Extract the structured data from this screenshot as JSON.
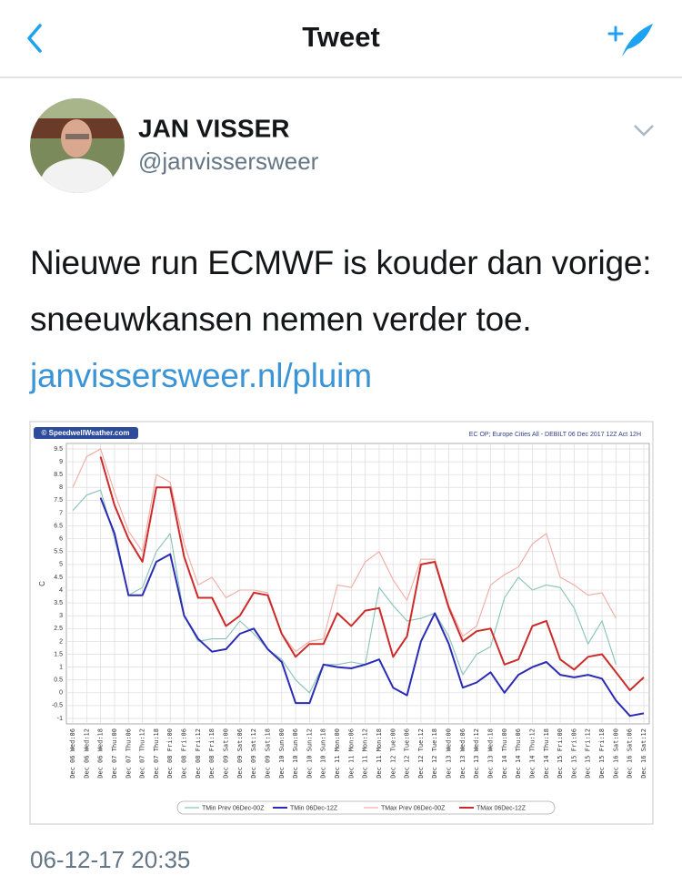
{
  "nav": {
    "title": "Tweet"
  },
  "tweet": {
    "name": "JAN VISSER",
    "handle": "@janvissersweer",
    "text": "Nieuwe run ECMWF is kouder dan vorige: sneeuwkansen nemen verder toe.",
    "link": "janvissersweer.nl/pluim",
    "timestamp": "06-12-17 20:35"
  },
  "chart_data": {
    "type": "line",
    "source": "© SpeedwellWeather.com",
    "title": "EC OP; Europe Cities All - DEBILT 06 Dec 2017 12Z Act 12H",
    "ylabel": "C",
    "categories": [
      "Dec 06 Wed:06",
      "Dec 06 Wed:12",
      "Dec 06 Wed:18",
      "Dec 07 Thu:00",
      "Dec 07 Thu:06",
      "Dec 07 Thu:12",
      "Dec 07 Thu:18",
      "Dec 08 Fri:00",
      "Dec 08 Fri:06",
      "Dec 08 Fri:12",
      "Dec 08 Fri:18",
      "Dec 09 Sat:00",
      "Dec 09 Sat:06",
      "Dec 09 Sat:12",
      "Dec 09 Sat:18",
      "Dec 10 Sun:00",
      "Dec 10 Sun:06",
      "Dec 10 Sun:12",
      "Dec 10 Sun:18",
      "Dec 11 Mon:00",
      "Dec 11 Mon:06",
      "Dec 11 Mon:12",
      "Dec 11 Mon:18",
      "Dec 12 Tue:00",
      "Dec 12 Tue:06",
      "Dec 12 Tue:12",
      "Dec 12 Tue:18",
      "Dec 13 Wed:00",
      "Dec 13 Wed:06",
      "Dec 13 Wed:12",
      "Dec 13 Wed:18",
      "Dec 14 Thu:00",
      "Dec 14 Thu:06",
      "Dec 14 Thu:12",
      "Dec 14 Thu:18",
      "Dec 15 Fri:00",
      "Dec 15 Fri:06",
      "Dec 15 Fri:12",
      "Dec 15 Fri:18",
      "Dec 16 Sat:00",
      "Dec 16 Sat:06",
      "Dec 16 Sat:12"
    ],
    "series": [
      {
        "name": "TMin Prev 06Dec-00Z",
        "color": "#86c2b8",
        "values": [
          7.1,
          7.7,
          7.9,
          6.0,
          3.8,
          4.1,
          5.5,
          6.2,
          3.0,
          2.0,
          2.1,
          2.1,
          2.8,
          2.3,
          1.7,
          1.3,
          0.5,
          0.0,
          1.1,
          1.1,
          1.2,
          1.1,
          4.1,
          3.4,
          2.8,
          2.9,
          3.1,
          2.2,
          0.7,
          1.5,
          1.8,
          3.7,
          4.5,
          4.0,
          4.2,
          4.1,
          3.3,
          1.9,
          2.8,
          1.1,
          null,
          null
        ]
      },
      {
        "name": "TMin 06Dec-12Z",
        "color": "#2b2bb5",
        "values": [
          null,
          null,
          7.6,
          6.2,
          3.8,
          3.8,
          5.1,
          5.4,
          3.0,
          2.1,
          1.6,
          1.7,
          2.3,
          2.5,
          1.7,
          1.2,
          -0.4,
          -0.4,
          1.1,
          1.0,
          0.95,
          1.1,
          1.3,
          0.2,
          -0.1,
          2.0,
          3.1,
          1.9,
          0.2,
          0.4,
          0.8,
          0.0,
          0.7,
          1.0,
          1.2,
          0.7,
          0.6,
          0.7,
          0.55,
          -0.3,
          -0.9,
          -0.8
        ]
      },
      {
        "name": "TMax Prev 06Dec-00Z",
        "color": "#f2aaa2",
        "values": [
          8.0,
          9.2,
          9.5,
          7.8,
          6.3,
          5.5,
          8.5,
          8.2,
          5.8,
          4.2,
          4.5,
          3.7,
          4.0,
          4.0,
          3.9,
          2.3,
          1.6,
          2.0,
          2.1,
          4.2,
          4.1,
          5.1,
          5.5,
          4.4,
          3.6,
          5.2,
          5.2,
          3.4,
          2.2,
          2.6,
          4.2,
          4.6,
          4.9,
          5.8,
          6.2,
          4.5,
          4.2,
          3.8,
          3.9,
          2.9,
          null,
          null
        ]
      },
      {
        "name": "TMax 06Dec-12Z",
        "color": "#cc2b2b",
        "values": [
          null,
          null,
          9.2,
          7.3,
          6.0,
          5.1,
          8.0,
          8.0,
          5.3,
          3.7,
          3.7,
          2.6,
          3.0,
          3.9,
          3.8,
          2.3,
          1.4,
          1.9,
          1.9,
          3.1,
          2.6,
          3.2,
          3.3,
          1.4,
          2.2,
          5.0,
          5.1,
          3.3,
          2.0,
          2.4,
          2.5,
          1.1,
          1.3,
          2.6,
          2.8,
          1.3,
          0.9,
          1.4,
          1.5,
          0.8,
          0.1,
          0.6
        ]
      }
    ],
    "ylim": [
      -1,
      9.5
    ],
    "yticks": [
      -1,
      -0.5,
      0,
      0.5,
      1,
      1.5,
      2,
      2.5,
      3,
      3.5,
      4,
      4.5,
      5,
      5.5,
      6,
      6.5,
      7,
      7.5,
      8,
      8.5,
      9,
      9.5
    ],
    "grid": true,
    "legend": "bottom"
  }
}
